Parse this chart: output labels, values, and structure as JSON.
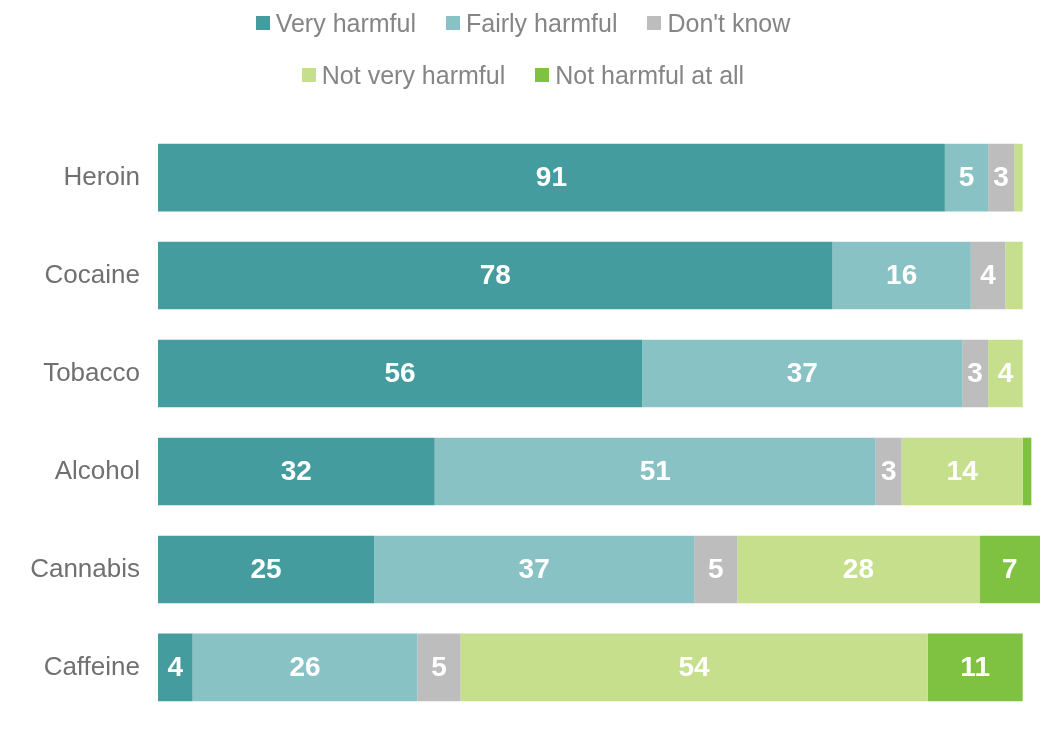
{
  "chart_data": {
    "type": "bar",
    "orientation": "horizontal",
    "stacked": true,
    "categories": [
      "Heroin",
      "Cocaine",
      "Tobacco",
      "Alcohol",
      "Cannabis",
      "Caffeine"
    ],
    "series": [
      {
        "name": "Very harmful",
        "color": "#459c9f",
        "values": [
          91,
          78,
          56,
          32,
          25,
          4
        ],
        "value_labels": [
          "91",
          "78",
          "56",
          "32",
          "25",
          "4"
        ]
      },
      {
        "name": "Fairly harmful",
        "color": "#89c2c4",
        "values": [
          5,
          16,
          37,
          51,
          37,
          26
        ],
        "value_labels": [
          "5",
          "16",
          "37",
          "51",
          "37",
          "26"
        ]
      },
      {
        "name": "Don't know",
        "color": "#bdbdbd",
        "values": [
          3,
          4,
          3,
          3,
          5,
          5
        ],
        "value_labels": [
          "3",
          "4",
          "3",
          "3",
          "5",
          "5"
        ]
      },
      {
        "name": "Not very harmful",
        "color": "#c5df8d",
        "values": [
          1,
          2,
          4,
          14,
          28,
          54
        ],
        "value_labels": [
          null,
          null,
          "4",
          "14",
          "28",
          "54"
        ]
      },
      {
        "name": "Not harmful at all",
        "color": "#7fc241",
        "values": [
          0,
          0,
          0,
          1,
          7,
          11
        ],
        "value_labels": [
          null,
          null,
          null,
          null,
          "7",
          "11"
        ]
      }
    ],
    "legend": "top",
    "grid": false,
    "tick_labels": "y"
  }
}
